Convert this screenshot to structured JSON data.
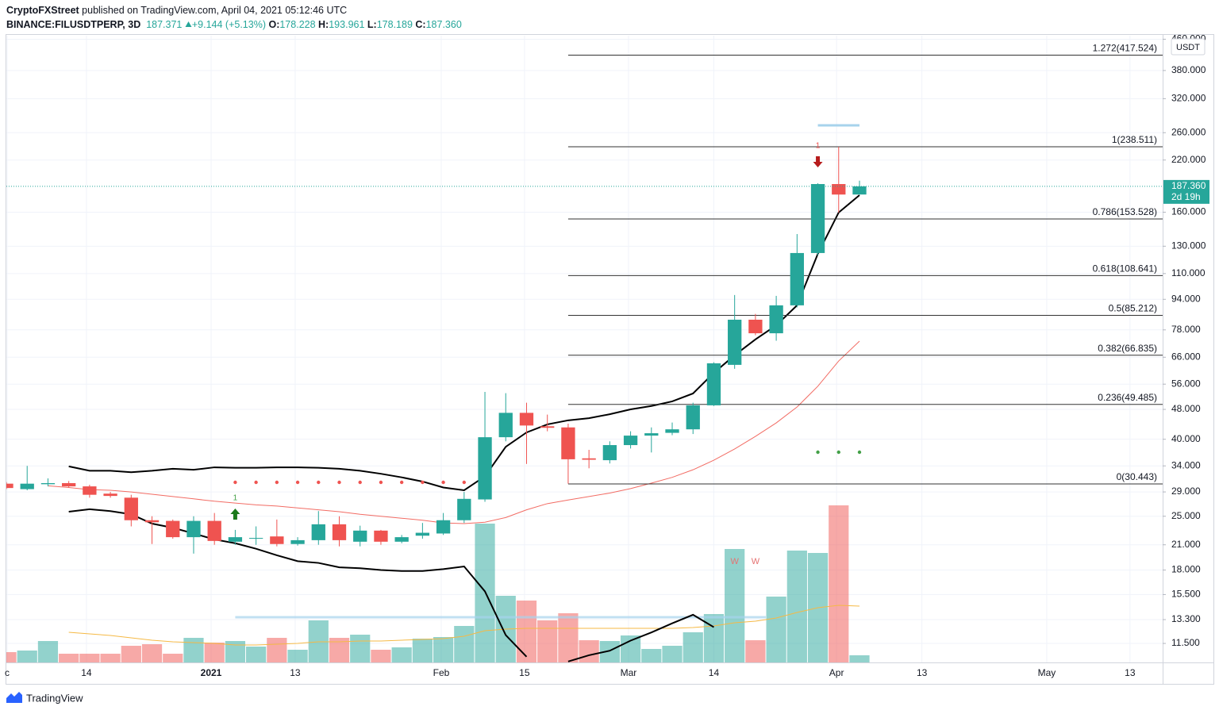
{
  "header": {
    "author": "CryptoFXStreet",
    "published": " published on TradingView.com, April 04, 2021 05:12:46 UTC",
    "symbol": "BINANCE:FILUSDTPERP, 3D",
    "last": "187.371",
    "change": "+9.144 (+5.13%)",
    "ohlc": [
      {
        "label": "O:",
        "value": "178.228"
      },
      {
        "label": "H:",
        "value": "193.961"
      },
      {
        "label": "L:",
        "value": "178.189"
      },
      {
        "label": "C:",
        "value": "187.360"
      }
    ]
  },
  "footer": {
    "brand": "TradingView"
  },
  "chart_data": {
    "type": "candlestick",
    "log_scale": true,
    "unit": "USDT",
    "up_color": "#26a69a",
    "down_color": "#ef5350",
    "xlim": [
      0,
      55.57
    ],
    "ylim": [
      10.24,
      470
    ],
    "xticks": [
      {
        "value": 0.04,
        "label": "c"
      },
      {
        "value": 3.85,
        "label": "14"
      },
      {
        "value": 9.84,
        "label": "2021"
      },
      {
        "value": 13.88,
        "label": "13"
      },
      {
        "value": 20.9,
        "label": "Feb"
      },
      {
        "value": 24.9,
        "label": "15"
      },
      {
        "value": 29.9,
        "label": "Mar"
      },
      {
        "value": 34.0,
        "label": "14"
      },
      {
        "value": 39.9,
        "label": "Apr"
      },
      {
        "value": 44.0,
        "label": "13"
      },
      {
        "value": 50.0,
        "label": "May"
      },
      {
        "value": 54.0,
        "label": "13"
      }
    ],
    "yticks": [
      {
        "value": 460,
        "label": "460.000"
      },
      {
        "value": 380,
        "label": "380.000"
      },
      {
        "value": 320,
        "label": "320.000"
      },
      {
        "value": 260,
        "label": "260.000"
      },
      {
        "value": 220,
        "label": "220.000"
      },
      {
        "value": 160,
        "label": "160.000"
      },
      {
        "value": 130,
        "label": "130.000"
      },
      {
        "value": 110,
        "label": "110.000"
      },
      {
        "value": 94,
        "label": "94.000"
      },
      {
        "value": 78,
        "label": "78.000"
      },
      {
        "value": 66,
        "label": "66.000"
      },
      {
        "value": 56,
        "label": "56.000"
      },
      {
        "value": 48,
        "label": "48.000"
      },
      {
        "value": 40,
        "label": "40.000"
      },
      {
        "value": 34,
        "label": "34.000"
      },
      {
        "value": 29,
        "label": "29.000"
      },
      {
        "value": 25,
        "label": "25.000"
      },
      {
        "value": 21,
        "label": "21.000"
      },
      {
        "value": 18,
        "label": "18.000"
      },
      {
        "value": 15.5,
        "label": "15.500"
      },
      {
        "value": 13.3,
        "label": "13.300"
      },
      {
        "value": 11.5,
        "label": "11.500"
      }
    ],
    "candles": {
      "open": [
        30.5,
        29.5,
        30.4,
        30.6,
        30.0,
        28.7,
        28.0,
        24.4,
        24.3,
        22.0,
        24.3,
        21.4,
        21.8,
        22.1,
        21.1,
        21.6,
        23.8,
        21.4,
        22.9,
        21.4,
        22.2,
        22.5,
        24.4,
        27.7,
        40.5,
        47.0,
        43.3,
        43.0,
        35.6,
        35.2,
        38.6,
        40.9,
        41.6,
        42.5,
        49.2,
        63.0,
        83.0,
        76.4,
        90.6,
        124.7,
        190.0,
        178.228
      ],
      "high": [
        30.8,
        34.0,
        31.5,
        31.0,
        30.3,
        29.0,
        28.5,
        25.0,
        24.5,
        25.0,
        25.5,
        23.0,
        23.5,
        24.5,
        22.0,
        25.8,
        25.0,
        23.6,
        23.0,
        22.3,
        24.0,
        25.5,
        29.0,
        53.4,
        53.0,
        50.0,
        46.5,
        44.0,
        37.5,
        39.5,
        42.0,
        43.0,
        44.3,
        50.0,
        64.0,
        96.5,
        86.0,
        96.0,
        140.0,
        191.0,
        238.5,
        193.961
      ],
      "low": [
        29.5,
        29.3,
        30.0,
        29.8,
        28.0,
        28.0,
        23.5,
        21.1,
        21.8,
        19.9,
        21.0,
        21.0,
        21.0,
        20.8,
        20.9,
        21.0,
        20.8,
        20.8,
        21.0,
        21.2,
        21.8,
        22.3,
        24.0,
        27.3,
        39.5,
        34.4,
        42.0,
        30.5,
        33.5,
        34.5,
        37.8,
        36.9,
        41.0,
        41.3,
        49.0,
        61.5,
        75.5,
        73.0,
        89.5,
        123.0,
        159.6,
        178.189
      ],
      "close": [
        29.7,
        30.5,
        30.6,
        30.0,
        28.5,
        28.3,
        24.4,
        24.1,
        22.0,
        24.3,
        21.5,
        22.0,
        21.9,
        21.1,
        21.6,
        23.8,
        21.6,
        22.9,
        21.4,
        22.0,
        22.6,
        24.4,
        27.8,
        40.5,
        47.0,
        43.5,
        42.9,
        35.4,
        35.3,
        38.6,
        40.9,
        41.5,
        42.5,
        49.2,
        63.6,
        83.0,
        76.4,
        90.6,
        124.7,
        190.0,
        178.2,
        187.36
      ]
    },
    "volume": [
      13,
      15,
      27,
      11,
      11,
      11,
      21,
      23,
      11,
      31,
      25,
      27,
      20,
      31,
      16,
      53,
      31,
      35,
      16,
      19,
      30,
      32,
      46,
      175,
      84,
      78,
      53,
      62,
      28,
      27,
      34,
      17,
      21,
      38,
      61,
      143,
      28,
      83,
      141,
      138,
      198,
      9
    ],
    "vlim": [
      0,
      250
    ],
    "volume_ma": [
      null,
      null,
      null,
      38,
      36,
      34,
      31,
      28,
      26,
      25,
      24,
      22,
      22,
      23,
      24,
      26,
      26,
      27,
      27,
      28,
      29,
      30,
      33,
      40,
      42,
      43,
      43,
      43,
      43,
      43,
      43,
      43,
      43,
      44,
      46,
      50,
      52,
      56,
      63,
      69,
      72,
      71
    ],
    "volume_ma_color": "#f5b945",
    "upper_line": [
      null,
      null,
      null,
      33.9,
      33.0,
      33.0,
      32.7,
      33.0,
      33.4,
      33.2,
      33.7,
      33.6,
      33.6,
      33.7,
      33.7,
      33.6,
      33.4,
      33.0,
      32.4,
      31.7,
      30.9,
      29.8,
      29.3,
      31.9,
      38.2,
      41.7,
      43.8,
      44.9,
      45.5,
      46.6,
      48.0,
      49.0,
      50.4,
      52.9,
      60.0,
      66.8,
      73.6,
      80.2,
      90.6,
      124.1,
      159.7,
      177.5
    ],
    "lower_line": [
      null,
      null,
      null,
      25.7,
      26.1,
      25.8,
      25.3,
      23.9,
      23.3,
      22.5,
      21.7,
      21.2,
      20.5,
      19.7,
      19.0,
      18.8,
      18.3,
      18.2,
      18.0,
      17.9,
      17.9,
      18.1,
      18.4,
      15.8,
      12.1,
      10.6,
      null,
      10.3,
      10.7,
      11.0,
      11.7,
      12.3,
      13.0,
      13.7,
      12.7,
      null,
      null,
      null,
      null,
      null,
      null,
      null
    ],
    "band_color": "#000000",
    "ma": [
      null,
      null,
      30.1,
      29.8,
      29.4,
      29.3,
      29.0,
      28.6,
      28.2,
      27.8,
      27.4,
      27.1,
      26.8,
      26.6,
      26.3,
      26.0,
      25.7,
      25.3,
      25.0,
      24.7,
      24.4,
      24.0,
      23.9,
      24.1,
      24.8,
      26.0,
      27.0,
      27.6,
      28.2,
      28.8,
      29.6,
      30.6,
      31.7,
      33.2,
      35.2,
      37.7,
      40.7,
      44.2,
      48.7,
      55.3,
      64.5,
      72.8
    ],
    "ma_color": "#f26c64",
    "fib_start": 27,
    "fib_levels": [
      {
        "value": 417.524,
        "label": "1.272(417.524)"
      },
      {
        "value": 238.511,
        "label": "1(238.511)"
      },
      {
        "value": 153.528,
        "label": "0.786(153.528)"
      },
      {
        "value": 108.641,
        "label": "0.618(108.641)"
      },
      {
        "value": 85.212,
        "label": "0.5(85.212)"
      },
      {
        "value": 66.835,
        "label": "0.382(66.835)"
      },
      {
        "value": 49.485,
        "label": "0.236(49.485)"
      },
      {
        "value": 30.443,
        "label": "0(30.443)"
      }
    ],
    "last_price": {
      "value": 187.36,
      "label": "187.360"
    },
    "countdown": "2d 19h",
    "buy_signal": {
      "index": 11,
      "label": "1"
    },
    "sell_signal": {
      "index": 39,
      "label": "1"
    },
    "red_dots": [
      11,
      12,
      13,
      14,
      15,
      16,
      17,
      18,
      19,
      20,
      21,
      22
    ],
    "green_dots": [
      39,
      40,
      41
    ],
    "w_labels": [
      {
        "index": 35,
        "label": "W"
      },
      {
        "index": 36,
        "label": "W"
      }
    ]
  }
}
